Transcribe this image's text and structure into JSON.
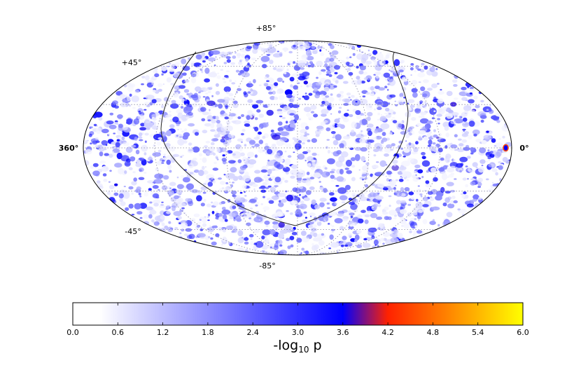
{
  "chart_data": {
    "type": "heatmap",
    "projection": "mollweide",
    "grid": true,
    "lat_labels": [
      "+85°",
      "+45°",
      "-45°",
      "-85°"
    ],
    "lon_labels": [
      "360°",
      "0°"
    ],
    "colorbar": {
      "min": 0.0,
      "max": 6.0,
      "ticks": [
        "0.0",
        "0.6",
        "1.2",
        "1.8",
        "2.4",
        "3.0",
        "3.6",
        "4.2",
        "4.8",
        "5.4",
        "6.0"
      ],
      "label_main": "-log",
      "label_sub": "10",
      "label_tail": " p",
      "colors": [
        {
          "value": 0.0,
          "color": "#ffffff"
        },
        {
          "value": 0.36,
          "color": "#ffffff"
        },
        {
          "value": 3.6,
          "color": "#0000ff"
        },
        {
          "value": 4.2,
          "color": "#ff2200"
        },
        {
          "value": 6.0,
          "color": "#ffff00"
        }
      ]
    },
    "hotspot": {
      "lon_deg": 5,
      "lat_deg": 0,
      "value": 4.5
    }
  }
}
